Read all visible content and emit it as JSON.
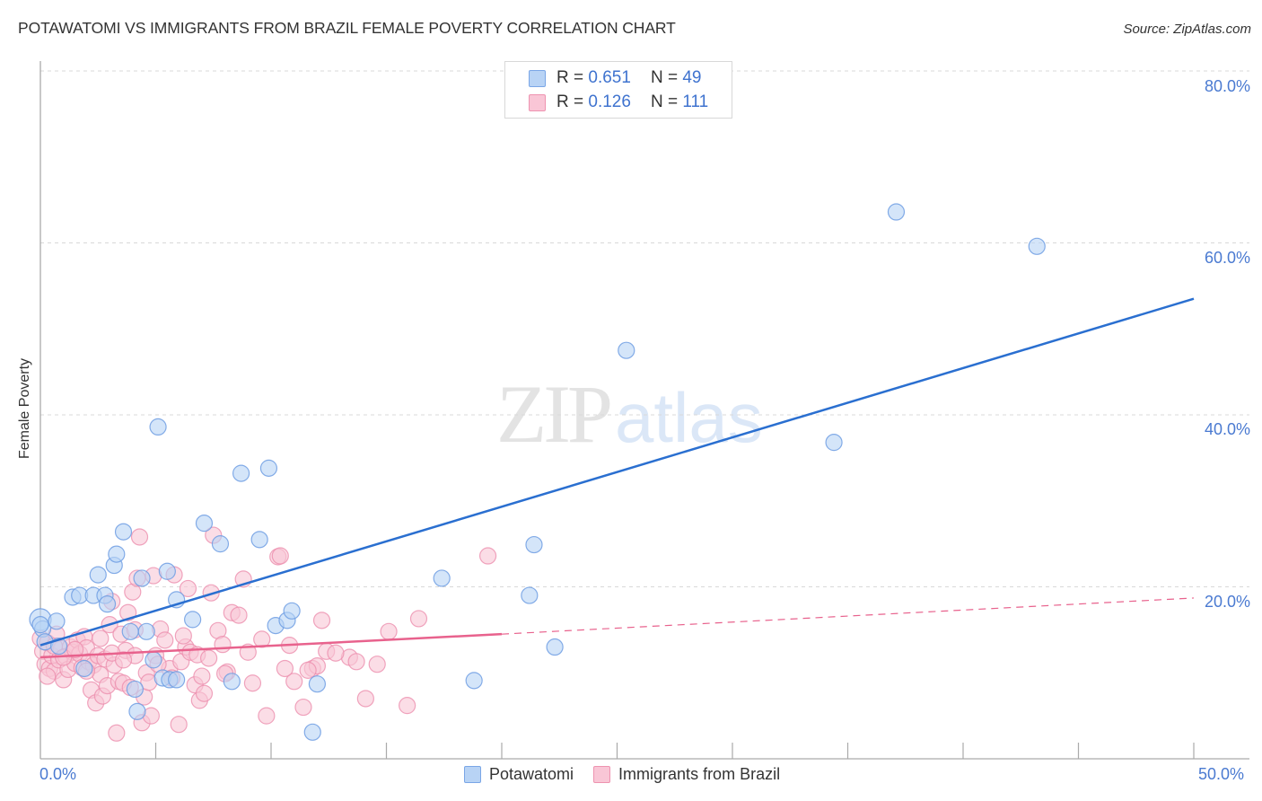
{
  "header": {
    "title": "POTAWATOMI VS IMMIGRANTS FROM BRAZIL FEMALE POVERTY CORRELATION CHART",
    "source": "Source: ZipAtlas.com"
  },
  "watermark": {
    "zip": "ZIP",
    "atlas": "atlas"
  },
  "legend": {
    "rows": [
      {
        "r_label": "R = ",
        "r_value": "0.651",
        "n_label": "N = ",
        "n_value": "49"
      },
      {
        "r_label": "R = ",
        "r_value": "0.126",
        "n_label": "N = ",
        "n_value": "111"
      }
    ],
    "bottom": [
      "Potawatomi",
      "Immigrants from Brazil"
    ]
  },
  "axes": {
    "ylabel": "Female Poverty",
    "yticks": [
      "80.0%",
      "60.0%",
      "40.0%",
      "20.0%"
    ],
    "xticks": [
      "0.0%",
      "50.0%"
    ]
  },
  "colors": {
    "blue_fill": "#b8d3f5",
    "blue_stroke": "#6f9ee3",
    "blue_line": "#2a6fd0",
    "pink_fill": "#f9c6d6",
    "pink_stroke": "#ec8fae",
    "pink_line": "#e8628d",
    "tick_text": "#4a7ad1",
    "grid": "#d9d9d9"
  },
  "chart_data": {
    "type": "scatter",
    "title": "POTAWATOMI VS IMMIGRANTS FROM BRAZIL FEMALE POVERTY CORRELATION CHART",
    "xlabel": "",
    "ylabel": "Female Poverty",
    "xlim": [
      0,
      50
    ],
    "ylim": [
      0,
      80
    ],
    "x_tick_labels": [
      "0.0%",
      "50.0%"
    ],
    "y_tick_labels": [
      "20.0%",
      "40.0%",
      "60.0%",
      "80.0%"
    ],
    "grid": true,
    "legend_position": "top-center and bottom",
    "series": [
      {
        "name": "Potawatomi",
        "R": 0.651,
        "N": 49,
        "color": "#b8d3f5",
        "trendline": {
          "x": [
            0,
            50
          ],
          "y": [
            13.2,
            53.5
          ]
        },
        "points": [
          [
            0.0,
            16.2
          ],
          [
            0.1,
            15.1
          ],
          [
            0.2,
            13.6
          ],
          [
            0.7,
            16.0
          ],
          [
            0.8,
            13.1
          ],
          [
            1.4,
            18.8
          ],
          [
            1.7,
            19.0
          ],
          [
            1.9,
            10.5
          ],
          [
            2.3,
            19.0
          ],
          [
            2.5,
            21.4
          ],
          [
            2.8,
            19.0
          ],
          [
            2.9,
            18.0
          ],
          [
            3.2,
            22.5
          ],
          [
            3.3,
            23.8
          ],
          [
            3.6,
            26.4
          ],
          [
            3.9,
            14.8
          ],
          [
            4.1,
            8.1
          ],
          [
            4.2,
            5.5
          ],
          [
            4.4,
            21.0
          ],
          [
            4.6,
            14.8
          ],
          [
            4.9,
            11.5
          ],
          [
            5.1,
            38.6
          ],
          [
            5.3,
            9.4
          ],
          [
            5.5,
            21.8
          ],
          [
            5.6,
            9.2
          ],
          [
            5.9,
            18.5
          ],
          [
            5.9,
            9.2
          ],
          [
            6.6,
            16.2
          ],
          [
            7.1,
            27.4
          ],
          [
            7.8,
            25.0
          ],
          [
            8.3,
            9.0
          ],
          [
            8.7,
            33.2
          ],
          [
            9.5,
            25.5
          ],
          [
            9.9,
            33.8
          ],
          [
            10.2,
            15.5
          ],
          [
            10.7,
            16.1
          ],
          [
            10.9,
            17.2
          ],
          [
            11.8,
            3.1
          ],
          [
            12.0,
            8.7
          ],
          [
            17.4,
            21.0
          ],
          [
            18.8,
            9.1
          ],
          [
            21.2,
            19.0
          ],
          [
            21.4,
            24.9
          ],
          [
            22.3,
            13.0
          ],
          [
            34.4,
            36.8
          ],
          [
            37.1,
            63.6
          ],
          [
            43.2,
            59.6
          ],
          [
            25.4,
            47.5
          ],
          [
            0.0,
            15.6
          ]
        ]
      },
      {
        "name": "Immigrants from Brazil",
        "R": 0.126,
        "N": 111,
        "color": "#f9c6d6",
        "trendline": {
          "x": [
            0,
            20
          ],
          "y": [
            11.8,
            14.5
          ],
          "dashed_extension": {
            "x": [
              20,
              50
            ],
            "y": [
              14.5,
              18.7
            ]
          }
        },
        "points": [
          [
            0.0,
            14.0
          ],
          [
            0.1,
            12.5
          ],
          [
            0.2,
            11.0
          ],
          [
            0.3,
            13.5
          ],
          [
            0.4,
            10.5
          ],
          [
            0.5,
            12.0
          ],
          [
            0.6,
            10.2
          ],
          [
            0.7,
            14.5
          ],
          [
            0.8,
            11.5
          ],
          [
            0.9,
            12.8
          ],
          [
            1.0,
            9.2
          ],
          [
            1.1,
            11.9
          ],
          [
            1.2,
            10.4
          ],
          [
            1.3,
            13.0
          ],
          [
            1.4,
            12.4
          ],
          [
            1.5,
            11.1
          ],
          [
            1.6,
            13.8
          ],
          [
            1.7,
            12.2
          ],
          [
            1.8,
            10.6
          ],
          [
            1.9,
            14.2
          ],
          [
            2.0,
            12.9
          ],
          [
            2.1,
            11.3
          ],
          [
            2.2,
            8.0
          ],
          [
            2.3,
            10.9
          ],
          [
            2.4,
            6.5
          ],
          [
            2.5,
            12.0
          ],
          [
            2.6,
            9.8
          ],
          [
            2.7,
            7.3
          ],
          [
            2.8,
            11.6
          ],
          [
            2.9,
            8.5
          ],
          [
            3.0,
            15.6
          ],
          [
            3.1,
            18.3
          ],
          [
            3.2,
            10.9
          ],
          [
            3.3,
            3.0
          ],
          [
            3.4,
            9.0
          ],
          [
            3.5,
            14.5
          ],
          [
            3.6,
            8.8
          ],
          [
            3.7,
            12.6
          ],
          [
            3.8,
            17.0
          ],
          [
            3.9,
            8.3
          ],
          [
            4.0,
            19.4
          ],
          [
            4.1,
            12.0
          ],
          [
            4.2,
            21.0
          ],
          [
            4.3,
            25.8
          ],
          [
            4.4,
            4.2
          ],
          [
            4.5,
            7.2
          ],
          [
            4.6,
            10.0
          ],
          [
            4.7,
            8.9
          ],
          [
            4.8,
            5.0
          ],
          [
            4.9,
            21.3
          ],
          [
            5.0,
            12.0
          ],
          [
            5.2,
            15.1
          ],
          [
            5.4,
            13.8
          ],
          [
            5.6,
            10.5
          ],
          [
            5.8,
            21.4
          ],
          [
            6.0,
            4.0
          ],
          [
            6.1,
            11.3
          ],
          [
            6.3,
            13.0
          ],
          [
            6.4,
            19.8
          ],
          [
            6.5,
            12.4
          ],
          [
            6.7,
            8.6
          ],
          [
            6.9,
            6.8
          ],
          [
            7.0,
            9.6
          ],
          [
            7.1,
            7.6
          ],
          [
            7.4,
            19.3
          ],
          [
            7.5,
            26.0
          ],
          [
            7.7,
            14.9
          ],
          [
            7.9,
            13.3
          ],
          [
            8.1,
            10.1
          ],
          [
            8.3,
            17.0
          ],
          [
            8.6,
            16.7
          ],
          [
            8.8,
            20.9
          ],
          [
            9.2,
            8.8
          ],
          [
            9.8,
            5.0
          ],
          [
            10.3,
            23.5
          ],
          [
            10.4,
            23.6
          ],
          [
            10.8,
            13.2
          ],
          [
            11.0,
            9.0
          ],
          [
            11.4,
            6.0
          ],
          [
            11.8,
            10.5
          ],
          [
            12.0,
            10.8
          ],
          [
            12.2,
            16.1
          ],
          [
            12.4,
            12.5
          ],
          [
            13.4,
            11.8
          ],
          [
            13.7,
            11.3
          ],
          [
            14.1,
            7.0
          ],
          [
            15.1,
            14.8
          ],
          [
            15.9,
            6.2
          ],
          [
            16.4,
            16.3
          ],
          [
            19.4,
            23.6
          ],
          [
            0.3,
            9.6
          ],
          [
            0.6,
            13.1
          ],
          [
            1.0,
            11.8
          ],
          [
            1.5,
            12.7
          ],
          [
            2.0,
            10.2
          ],
          [
            2.6,
            14.0
          ],
          [
            3.1,
            12.3
          ],
          [
            3.6,
            11.5
          ],
          [
            4.1,
            15.0
          ],
          [
            5.1,
            11.0
          ],
          [
            5.7,
            9.4
          ],
          [
            6.2,
            14.3
          ],
          [
            6.8,
            12.1
          ],
          [
            7.3,
            11.7
          ],
          [
            8.0,
            9.9
          ],
          [
            9.0,
            12.4
          ],
          [
            9.6,
            13.9
          ],
          [
            10.6,
            10.5
          ],
          [
            11.6,
            10.3
          ],
          [
            12.8,
            12.3
          ],
          [
            14.6,
            11.0
          ]
        ]
      }
    ]
  }
}
